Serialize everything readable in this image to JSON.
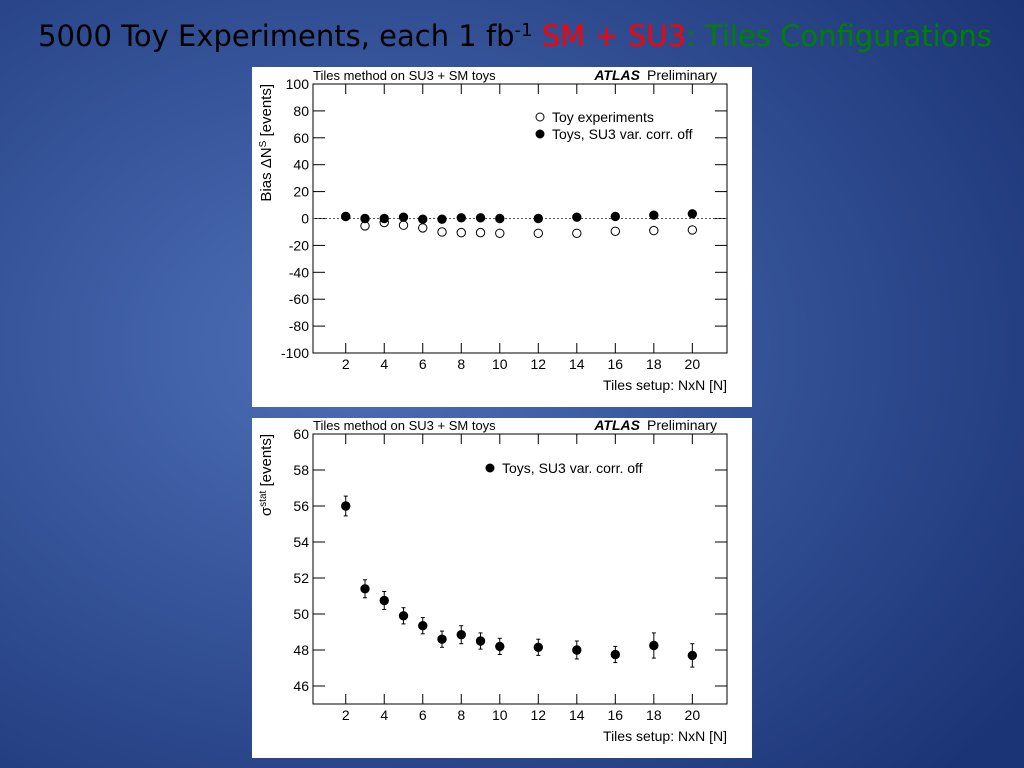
{
  "slide": {
    "title_parts": [
      {
        "text": "5000 Toy Experiments, each 1 fb",
        "color": "#000000"
      },
      {
        "text": "-1",
        "color": "#000000",
        "sup": true
      },
      {
        "text": " SM + SU3",
        "color": "#ff0000"
      },
      {
        "text": ": Tiles Configurations",
        "color": "#008000"
      }
    ]
  },
  "chart_data": [
    {
      "type": "scatter",
      "title": "Tiles method on SU3 + SM toys",
      "brand": "ATLAS",
      "brand_note": "Preliminary",
      "xlabel": "Tiles setup: NxN [N]",
      "ylabel": "Bias ΔN",
      "ylabel_sup": "S",
      "ylabel_tail": " [events]",
      "x": [
        2,
        3,
        4,
        5,
        6,
        7,
        8,
        9,
        10,
        12,
        14,
        16,
        18,
        20
      ],
      "series": [
        {
          "name": "Toy experiments",
          "color": "#000000",
          "marker": "open",
          "values": [
            1.5,
            -5.5,
            -3,
            -5,
            -7,
            -10,
            -10.5,
            -10.5,
            -11,
            -11,
            -11,
            -9.5,
            -9,
            -8.5
          ]
        },
        {
          "name": "Toys, SU3 var. corr. off",
          "color": "#000000",
          "marker": "filled",
          "values": [
            1.5,
            0,
            0,
            1,
            -0.5,
            -0.5,
            0.5,
            0.5,
            0,
            0,
            1,
            1.5,
            2.5,
            3.5
          ]
        }
      ],
      "hline": 0,
      "xlim": [
        0.3,
        21.8
      ],
      "xticks": [
        2,
        4,
        6,
        8,
        10,
        12,
        14,
        16,
        18,
        20
      ],
      "ylim": [
        -100,
        100
      ],
      "yticks": [
        -100,
        -80,
        -60,
        -40,
        -20,
        0,
        20,
        40,
        60,
        80,
        100
      ]
    },
    {
      "type": "errorbar",
      "title": "Tiles method on SU3 + SM toys",
      "brand": "ATLAS",
      "brand_note": "Preliminary",
      "xlabel": "Tiles setup: NxN [N]",
      "ylabel": "σ",
      "ylabel_sup": "stat",
      "ylabel_tail": " [events]",
      "x": [
        2,
        3,
        4,
        5,
        6,
        7,
        8,
        9,
        10,
        12,
        14,
        16,
        18,
        20
      ],
      "series": [
        {
          "name": "Toys, SU3 var. corr. off",
          "color": "#000000",
          "marker": "filled",
          "values": [
            56,
            51.4,
            50.75,
            49.9,
            49.35,
            48.6,
            48.85,
            48.5,
            48.2,
            48.15,
            48,
            47.75,
            48.25,
            47.7
          ],
          "errors": [
            0.55,
            0.5,
            0.5,
            0.45,
            0.45,
            0.45,
            0.5,
            0.45,
            0.45,
            0.45,
            0.5,
            0.45,
            0.7,
            0.65
          ]
        }
      ],
      "xlim": [
        0.3,
        21.8
      ],
      "xticks": [
        2,
        4,
        6,
        8,
        10,
        12,
        14,
        16,
        18,
        20
      ],
      "ylim": [
        45,
        60
      ],
      "yticks": [
        46,
        48,
        50,
        52,
        54,
        56,
        58,
        60
      ]
    }
  ]
}
